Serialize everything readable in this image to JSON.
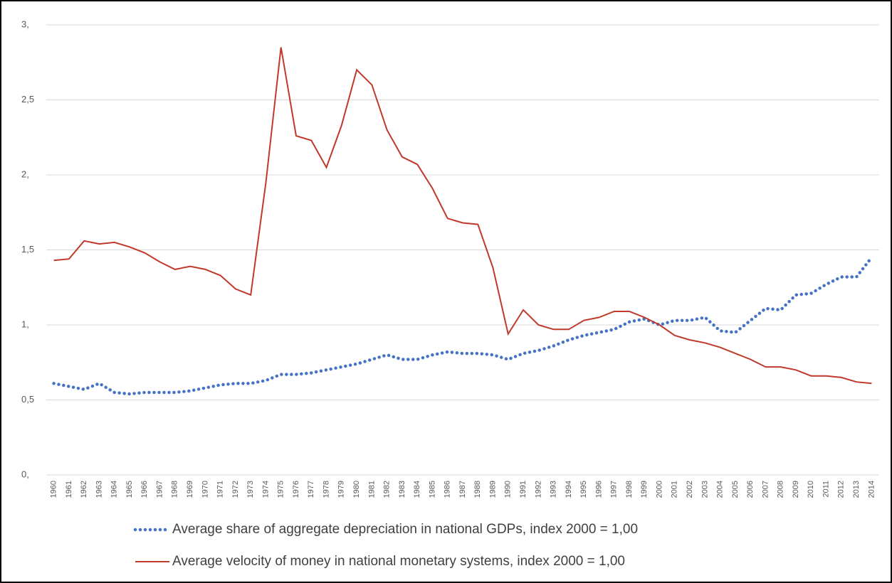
{
  "chart_data": {
    "type": "line",
    "categories": [
      "1960",
      "1961",
      "1962",
      "1963",
      "1964",
      "1965",
      "1966",
      "1967",
      "1968",
      "1969",
      "1970",
      "1971",
      "1972",
      "1973",
      "1974",
      "1975",
      "1976",
      "1977",
      "1978",
      "1979",
      "1980",
      "1981",
      "1982",
      "1983",
      "1984",
      "1985",
      "1986",
      "1987",
      "1988",
      "1989",
      "1990",
      "1991",
      "1992",
      "1993",
      "1994",
      "1995",
      "1996",
      "1997",
      "1998",
      "1999",
      "2000",
      "2001",
      "2002",
      "2003",
      "2004",
      "2005",
      "2006",
      "2007",
      "2008",
      "2009",
      "2010",
      "2011",
      "2012",
      "2013",
      "2014"
    ],
    "series": [
      {
        "name": "Average share of aggregate depreciation in national GDPs, index 2000 = 1,00",
        "color": "#4472c4",
        "dash": "dotted",
        "values": [
          0.61,
          0.59,
          0.57,
          0.61,
          0.55,
          0.54,
          0.55,
          0.55,
          0.55,
          0.56,
          0.58,
          0.6,
          0.61,
          0.61,
          0.63,
          0.67,
          0.67,
          0.68,
          0.7,
          0.72,
          0.74,
          0.77,
          0.8,
          0.77,
          0.77,
          0.8,
          0.82,
          0.81,
          0.81,
          0.8,
          0.77,
          0.81,
          0.83,
          0.86,
          0.9,
          0.93,
          0.95,
          0.97,
          1.02,
          1.04,
          1.0,
          1.03,
          1.03,
          1.05,
          0.96,
          0.95,
          1.03,
          1.11,
          1.1,
          1.2,
          1.21,
          1.27,
          1.32,
          1.32,
          1.45
        ]
      },
      {
        "name": "Average velocity of money in national monetary systems, index 2000 = 1,00",
        "color": "#c0392b",
        "dash": "solid",
        "values": [
          1.43,
          1.44,
          1.56,
          1.54,
          1.55,
          1.52,
          1.48,
          1.42,
          1.37,
          1.39,
          1.37,
          1.33,
          1.24,
          1.2,
          1.95,
          2.85,
          2.26,
          2.23,
          2.05,
          2.33,
          2.7,
          2.6,
          2.3,
          2.12,
          2.07,
          1.91,
          1.71,
          1.68,
          1.67,
          1.38,
          0.94,
          1.1,
          1.0,
          0.97,
          0.97,
          1.03,
          1.05,
          1.09,
          1.09,
          1.05,
          1.0,
          0.93,
          0.9,
          0.88,
          0.85,
          0.81,
          0.77,
          0.72,
          0.72,
          0.7,
          0.66,
          0.66,
          0.65,
          0.62,
          0.61
        ]
      }
    ],
    "ylim": [
      0,
      3
    ],
    "yticks": [
      {
        "value": 0,
        "label": "0,"
      },
      {
        "value": 0.5,
        "label": "0,5"
      },
      {
        "value": 1,
        "label": "1,"
      },
      {
        "value": 1.5,
        "label": "1,5"
      },
      {
        "value": 2,
        "label": "2,"
      },
      {
        "value": 2.5,
        "label": "2,5"
      },
      {
        "value": 3,
        "label": "3,"
      }
    ],
    "grid": true,
    "legend": "bottom"
  }
}
